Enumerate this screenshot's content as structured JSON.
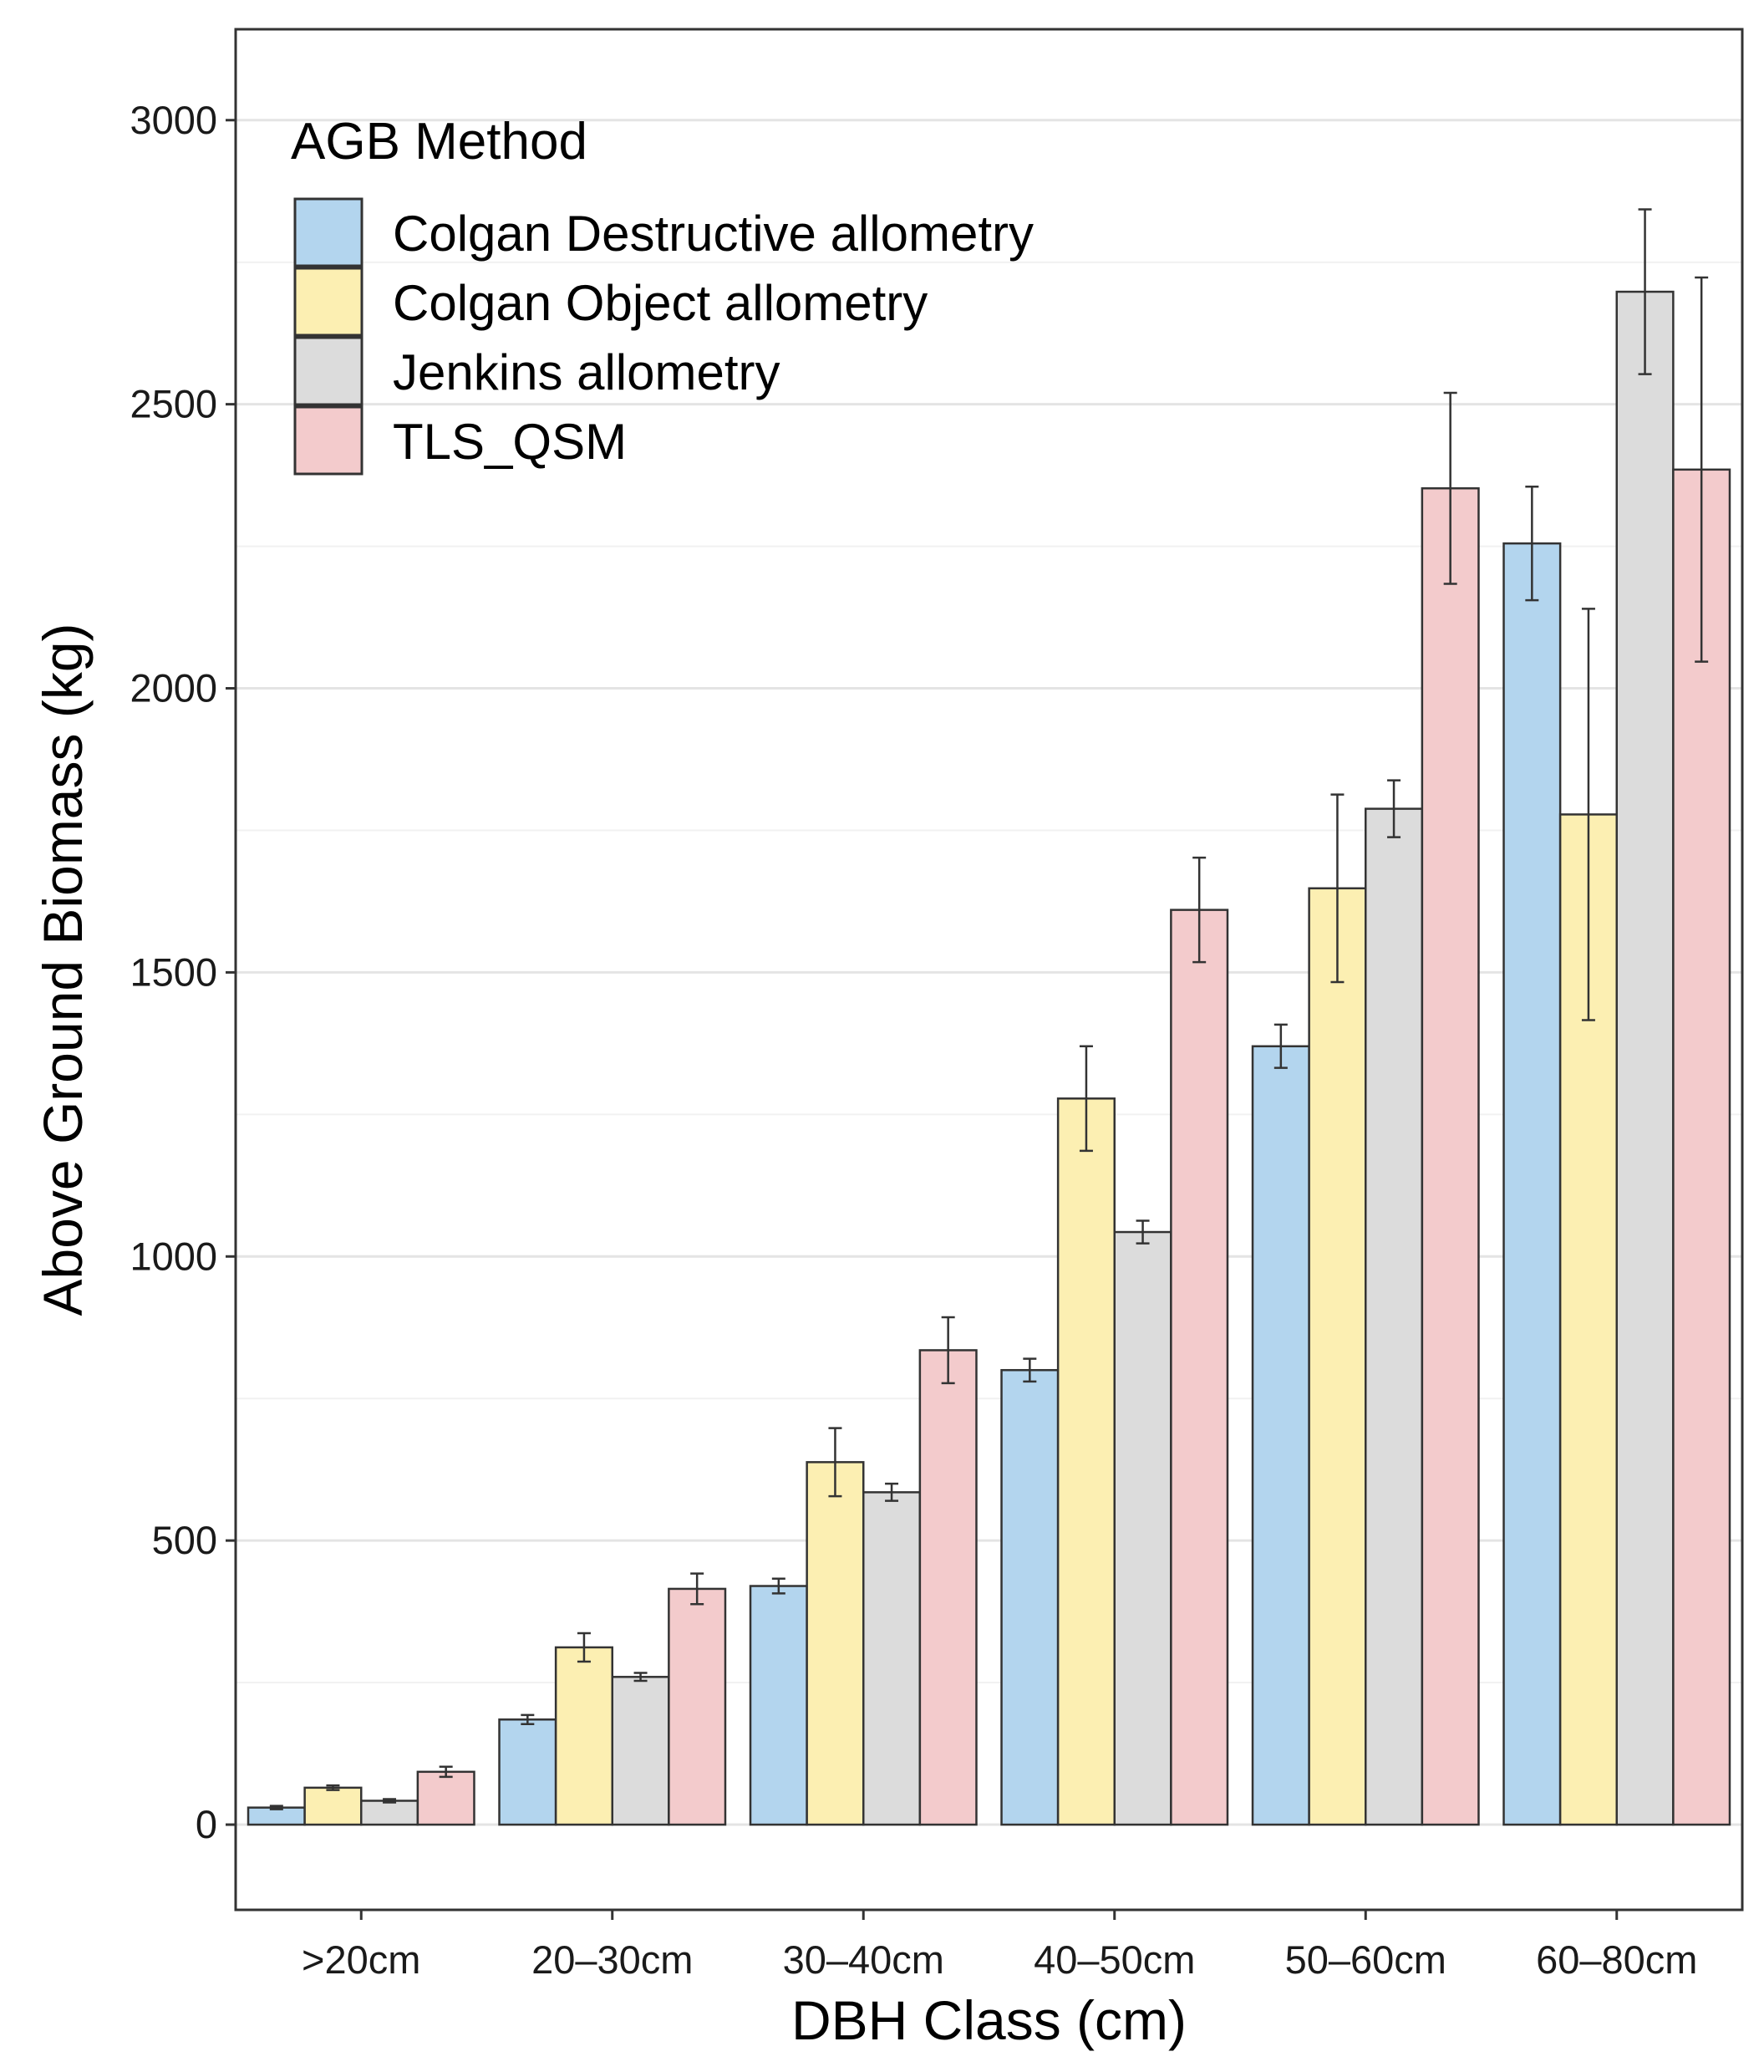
{
  "chart_data": {
    "type": "bar",
    "xlabel": "DBH Class (cm)",
    "ylabel": "Above Ground Biomass (kg)",
    "ylim": [
      -150,
      3160
    ],
    "yticks": [
      0,
      500,
      1000,
      1500,
      2000,
      2500,
      3000
    ],
    "grid": "horizontal",
    "legend": {
      "title": "AGB  Method",
      "placement": "top-left"
    },
    "categories": [
      ">20cm",
      "20–30cm",
      "30–40cm",
      "40–50cm",
      "50–60cm",
      "60–80cm"
    ],
    "series": [
      {
        "name": "Colgan  Destructive allometry",
        "color": "#b3d5ee",
        "values": [
          30,
          185,
          420,
          800,
          1370,
          2255
        ],
        "error": [
          3,
          8,
          13,
          20,
          38,
          100
        ]
      },
      {
        "name": "Colgan  Object allometry",
        "color": "#fcefb2",
        "values": [
          65,
          312,
          638,
          1278,
          1648,
          1778
        ],
        "error": [
          4,
          25,
          60,
          92,
          165,
          362
        ]
      },
      {
        "name": "Jenkins allometry",
        "color": "#dcdcdc",
        "values": [
          42,
          260,
          585,
          1043,
          1788,
          2698
        ],
        "error": [
          3,
          7,
          15,
          20,
          50,
          145
        ]
      },
      {
        "name": "TLS_QSM",
        "color": "#f3cbcc",
        "values": [
          93,
          415,
          835,
          1610,
          2352,
          2385
        ],
        "error": [
          9,
          27,
          58,
          92,
          168,
          338
        ]
      }
    ]
  }
}
